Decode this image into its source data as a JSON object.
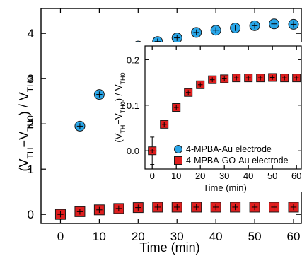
{
  "chart_data": [
    {
      "id": "main",
      "type": "scatter",
      "xlabel": "Time (min)",
      "ylabel": {
        "prefix": "(V",
        "sub1": "TH",
        "mid": "−V",
        "sub2": "TH0",
        "suffix": ") / V",
        "sub3": "TH0"
      },
      "xlim": [
        -5,
        62
      ],
      "ylim": [
        -0.2,
        4.55
      ],
      "xticks": [
        0,
        10,
        20,
        30,
        40,
        50,
        60
      ],
      "yticks": [
        0,
        1,
        2,
        3,
        4
      ],
      "grid": false,
      "series": [
        {
          "marker": "circle",
          "color": "#2aa6e8",
          "x": [
            0,
            5,
            10,
            15,
            20,
            25,
            30,
            35,
            40,
            45,
            50,
            55,
            60
          ],
          "y": [
            0.0,
            1.95,
            2.65,
            3.45,
            3.72,
            3.82,
            3.9,
            4.02,
            4.07,
            4.12,
            4.17,
            4.21,
            4.2
          ]
        },
        {
          "marker": "square",
          "color": "#e01e1e",
          "x": [
            0,
            5,
            10,
            15,
            20,
            25,
            30,
            35,
            40,
            45,
            50,
            55,
            60
          ],
          "y": [
            0.0,
            0.06,
            0.1,
            0.13,
            0.15,
            0.16,
            0.16,
            0.16,
            0.16,
            0.16,
            0.16,
            0.16,
            0.16
          ]
        }
      ]
    },
    {
      "id": "inset",
      "type": "scatter",
      "xlabel": "Time (min)",
      "ylabel": {
        "prefix": "(V",
        "sub1": "TH",
        "mid": "−V",
        "sub2": "TH0",
        "suffix": ") / V",
        "sub3": "TH0"
      },
      "xlim": [
        -3,
        62
      ],
      "ylim": [
        -0.04,
        0.23
      ],
      "xticks": [
        0,
        10,
        20,
        30,
        40,
        50,
        60
      ],
      "yticks": [
        "0.0",
        "0.1",
        "0.2"
      ],
      "grid": false,
      "legend_position": "bottom-right",
      "series": [
        {
          "name": "4-MPBA-Au electrode",
          "marker": "circle",
          "color": "#2aa6e8",
          "x": [
            0
          ],
          "y": [
            0.0
          ],
          "yerr": [
            0.03
          ]
        },
        {
          "name": "4-MPBA-GO-Au electrode",
          "marker": "square",
          "color": "#e01e1e",
          "x": [
            0,
            5,
            10,
            15,
            20,
            25,
            30,
            35,
            40,
            45,
            50,
            55,
            60
          ],
          "y": [
            0.0,
            0.058,
            0.095,
            0.128,
            0.145,
            0.156,
            0.158,
            0.16,
            0.16,
            0.16,
            0.161,
            0.16,
            0.16
          ]
        }
      ]
    }
  ]
}
